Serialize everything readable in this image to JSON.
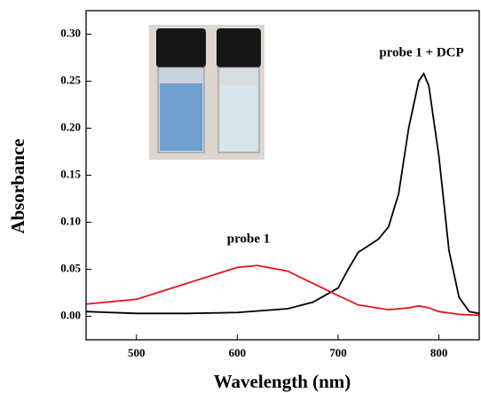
{
  "chart_data": {
    "type": "line",
    "x_label": "Wavelength (nm)",
    "y_label": "Absorbance",
    "annotations": [
      "probe 1",
      "probe 1 + DCP"
    ],
    "series": [
      {
        "name": "probe 1 + DCP",
        "color": "#000000",
        "x": [
          450,
          500,
          550,
          600,
          650,
          675,
          700,
          710,
          720,
          730,
          740,
          750,
          760,
          770,
          780,
          785,
          790,
          800,
          810,
          820,
          830,
          840
        ],
        "values": [
          0.005,
          0.003,
          0.003,
          0.004,
          0.008,
          0.015,
          0.03,
          0.05,
          0.068,
          0.075,
          0.082,
          0.095,
          0.13,
          0.2,
          0.25,
          0.258,
          0.245,
          0.17,
          0.07,
          0.02,
          0.005,
          0.003
        ]
      },
      {
        "name": "probe 1",
        "color": "#e8141c",
        "x": [
          450,
          500,
          550,
          600,
          620,
          650,
          675,
          700,
          720,
          750,
          770,
          780,
          790,
          800,
          820,
          840
        ],
        "values": [
          0.013,
          0.018,
          0.035,
          0.052,
          0.054,
          0.048,
          0.035,
          0.022,
          0.012,
          0.007,
          0.009,
          0.011,
          0.009,
          0.005,
          0.002,
          0.001
        ]
      }
    ],
    "xlim": [
      450,
      840
    ],
    "xticks": [
      500,
      600,
      700,
      800
    ],
    "ylim": [
      -0.025,
      0.325
    ],
    "yticks": [
      {
        "value": 0,
        "label": "0.00"
      },
      {
        "value": 0.05,
        "label": "0.05"
      },
      {
        "value": 0.1,
        "label": "0.10"
      },
      {
        "value": 0.15,
        "label": "0.15"
      },
      {
        "value": 0.2,
        "label": "0.20"
      },
      {
        "value": 0.25,
        "label": "0.25"
      },
      {
        "value": 0.3,
        "label": "0.30"
      }
    ]
  }
}
